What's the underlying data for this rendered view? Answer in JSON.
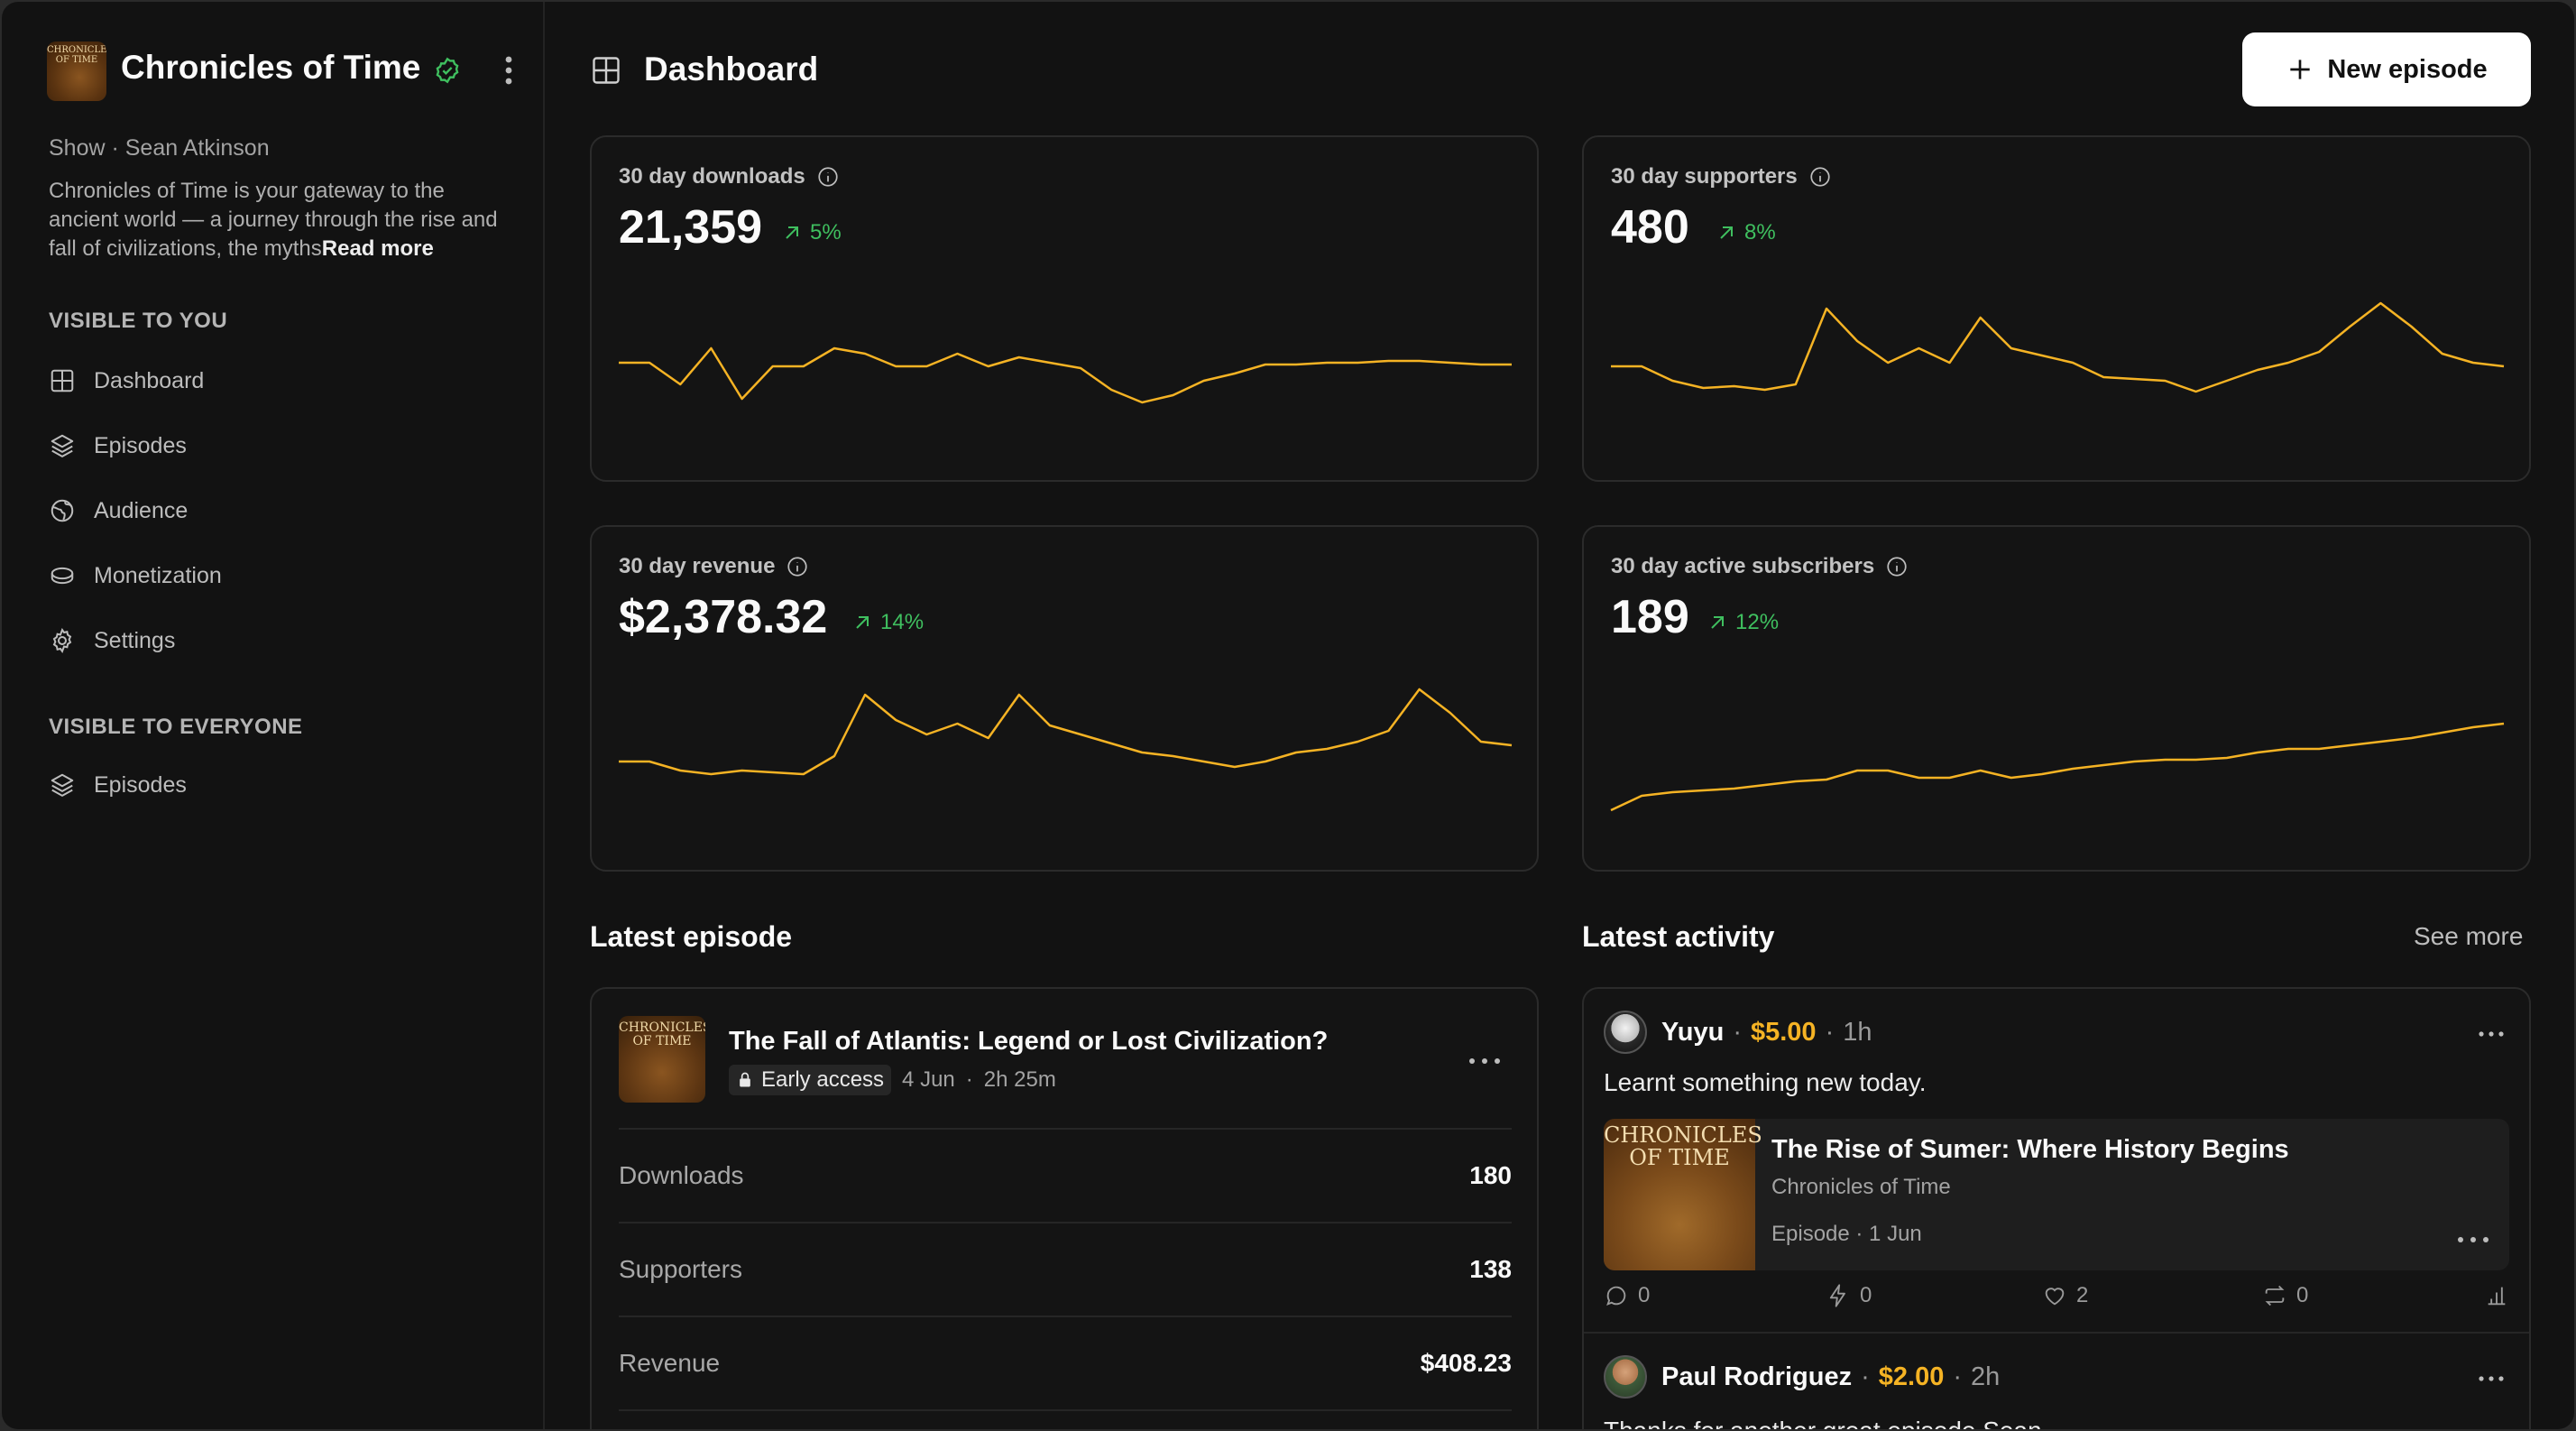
{
  "sidebar": {
    "show_logo_text": "CHRONICLES OF TIME",
    "show_title": "Chronicles of Time",
    "show_meta": "Show · Sean Atkinson",
    "description": "Chronicles of Time is your gateway to the ancient world — a journey through the rise and fall of civilizations, the myths",
    "read_more": "Read more",
    "section_private": "VISIBLE TO YOU",
    "private_items": [
      {
        "label": "Dashboard",
        "icon": "grid-icon"
      },
      {
        "label": "Episodes",
        "icon": "layers-icon"
      },
      {
        "label": "Audience",
        "icon": "globe-icon"
      },
      {
        "label": "Monetization",
        "icon": "coin-icon"
      },
      {
        "label": "Settings",
        "icon": "gear-icon"
      }
    ],
    "section_public": "VISIBLE TO EVERYONE",
    "public_items": [
      {
        "label": "Episodes",
        "icon": "layers-icon"
      }
    ]
  },
  "header": {
    "title": "Dashboard",
    "new_episode": "New episode"
  },
  "colors": {
    "accent": "#f5b324",
    "trend_up": "#3fbf5f",
    "background": "#121212"
  },
  "stats": [
    {
      "label": "30 day downloads",
      "value": "21,359",
      "trend": "5%"
    },
    {
      "label": "30 day supporters",
      "value": "480",
      "trend": "8%"
    },
    {
      "label": "30 day revenue",
      "value": "$2,378.32",
      "trend": "14%"
    },
    {
      "label": "30 day active subscribers",
      "value": "189",
      "trend": "12%"
    }
  ],
  "chart_data": [
    {
      "type": "line",
      "title": "30 day downloads",
      "x": [
        1,
        2,
        3,
        4,
        5,
        6,
        7,
        8,
        9,
        10,
        11,
        12,
        13,
        14,
        15,
        16,
        17,
        18,
        19,
        20,
        21,
        22,
        23,
        24,
        25,
        26,
        27,
        28,
        29,
        30
      ],
      "values": [
        50,
        50,
        38,
        58,
        30,
        48,
        48,
        58,
        55,
        48,
        48,
        55,
        48,
        53,
        50,
        47,
        35,
        28,
        32,
        40,
        44,
        49,
        49,
        50,
        50,
        51,
        51,
        50,
        49,
        49
      ],
      "ylim": [
        0,
        100
      ],
      "grid": false,
      "legend": "none"
    },
    {
      "type": "line",
      "title": "30 day supporters",
      "x": [
        1,
        2,
        3,
        4,
        5,
        6,
        7,
        8,
        9,
        10,
        11,
        12,
        13,
        14,
        15,
        16,
        17,
        18,
        19,
        20,
        21,
        22,
        23,
        24,
        25,
        26,
        27,
        28,
        29,
        30
      ],
      "values": [
        48,
        48,
        40,
        36,
        37,
        35,
        38,
        80,
        62,
        50,
        58,
        50,
        75,
        58,
        54,
        50,
        42,
        41,
        40,
        34,
        40,
        46,
        50,
        56,
        70,
        83,
        70,
        55,
        50,
        48
      ],
      "ylim": [
        0,
        100
      ],
      "grid": false,
      "legend": "none"
    },
    {
      "type": "line",
      "title": "30 day revenue",
      "x": [
        1,
        2,
        3,
        4,
        5,
        6,
        7,
        8,
        9,
        10,
        11,
        12,
        13,
        14,
        15,
        16,
        17,
        18,
        19,
        20,
        21,
        22,
        23,
        24,
        25,
        26,
        27,
        28,
        29,
        30
      ],
      "values": [
        45,
        45,
        40,
        38,
        40,
        39,
        38,
        48,
        82,
        68,
        60,
        66,
        58,
        82,
        65,
        60,
        55,
        50,
        48,
        45,
        42,
        45,
        50,
        52,
        56,
        62,
        85,
        72,
        56,
        54
      ],
      "ylim": [
        0,
        100
      ],
      "grid": false,
      "legend": "none"
    },
    {
      "type": "line",
      "title": "30 day active subscribers",
      "x": [
        1,
        2,
        3,
        4,
        5,
        6,
        7,
        8,
        9,
        10,
        11,
        12,
        13,
        14,
        15,
        16,
        17,
        18,
        19,
        20,
        21,
        22,
        23,
        24,
        25,
        26,
        27,
        28,
        29,
        30
      ],
      "values": [
        18,
        26,
        28,
        29,
        30,
        32,
        34,
        35,
        40,
        40,
        36,
        36,
        40,
        36,
        38,
        41,
        43,
        45,
        46,
        46,
        47,
        50,
        52,
        52,
        54,
        56,
        58,
        61,
        64,
        66
      ],
      "ylim": [
        0,
        100
      ],
      "grid": false,
      "legend": "none"
    }
  ],
  "latest_episode": {
    "section_title": "Latest episode",
    "art_text": "CHRONICLES OF TIME",
    "title": "The Fall of Atlantis: Legend or Lost Civilization?",
    "badge": "Early access",
    "date": "4 Jun",
    "duration": "2h 25m",
    "rows": [
      {
        "label": "Downloads",
        "value": "180"
      },
      {
        "label": "Supporters",
        "value": "138"
      },
      {
        "label": "Revenue",
        "value": "$408.23"
      }
    ]
  },
  "activity": {
    "section_title": "Latest activity",
    "see_more": "See more",
    "items": [
      {
        "name": "Yuyu",
        "amount": "$5.00",
        "time": "1h",
        "message": "Learnt something new today.",
        "embed": {
          "art_text": "CHRONICLES OF TIME",
          "title": "The Rise of Sumer: Where History Begins",
          "show": "Chronicles of Time",
          "meta": "Episode · 1 Jun"
        },
        "stats": {
          "comments": "0",
          "boosts": "0",
          "likes": "2",
          "reposts": "0"
        }
      },
      {
        "name": "Paul Rodriguez",
        "amount": "$2.00",
        "time": "2h",
        "message": "Thanks for another great episode Sean"
      }
    ]
  }
}
